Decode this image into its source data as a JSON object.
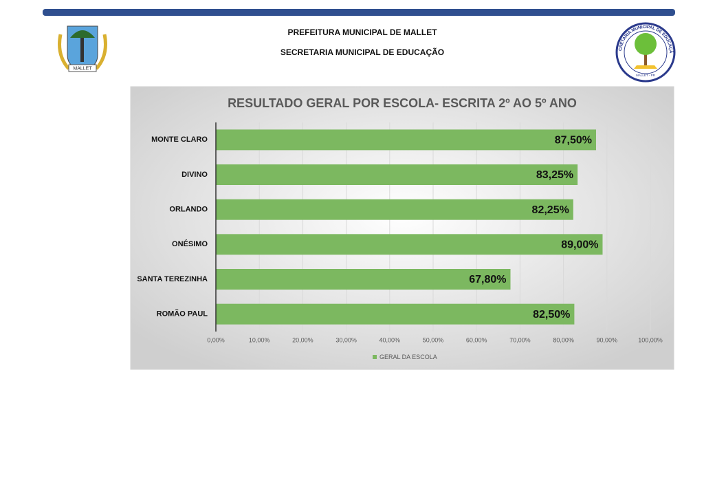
{
  "header": {
    "line1": "PREFEITURA MUNICIPAL DE MALLET",
    "line2": "SECRETARIA MUNICIPAL DE EDUCAÇÃO"
  },
  "logos": {
    "left_ribbon": "MALLET",
    "right_ring": "SECRETARIA MUNICIPAL DE EDUCAÇÃO",
    "right_bottom": "MALLET - PR"
  },
  "chart_data": {
    "type": "hbar",
    "title": "RESULTADO GERAL POR ESCOLA- ESCRITA 2º AO 5º ANO",
    "categories": [
      "MONTE CLARO",
      "DIVINO",
      "ORLANDO",
      "ONÉSIMO",
      "SANTA TEREZINHA",
      "ROMÃO PAUL"
    ],
    "series": [
      {
        "name": "GERAL DA ESCOLA",
        "color": "#7cb860",
        "values": [
          87.5,
          83.25,
          82.25,
          89,
          67.8,
          82.5
        ],
        "value_labels": [
          "87,50%",
          "83,25%",
          "82,25%",
          "89,00%",
          "67,80%",
          "82,50%"
        ]
      }
    ],
    "xlim": [
      0,
      100
    ],
    "xticks": [
      {
        "value": 0,
        "label": "0,00%"
      },
      {
        "value": 10,
        "label": "10,00%"
      },
      {
        "value": 20,
        "label": "20,00%"
      },
      {
        "value": 30,
        "label": "30,00%"
      },
      {
        "value": 40,
        "label": "40,00%"
      },
      {
        "value": 50,
        "label": "50,00%"
      },
      {
        "value": 60,
        "label": "60,00%"
      },
      {
        "value": 70,
        "label": "70,00%"
      },
      {
        "value": 80,
        "label": "80,00%"
      },
      {
        "value": 90,
        "label": "90,00%"
      },
      {
        "value": 100,
        "label": "100,00%"
      }
    ],
    "grid": true,
    "legend": "bottom"
  }
}
